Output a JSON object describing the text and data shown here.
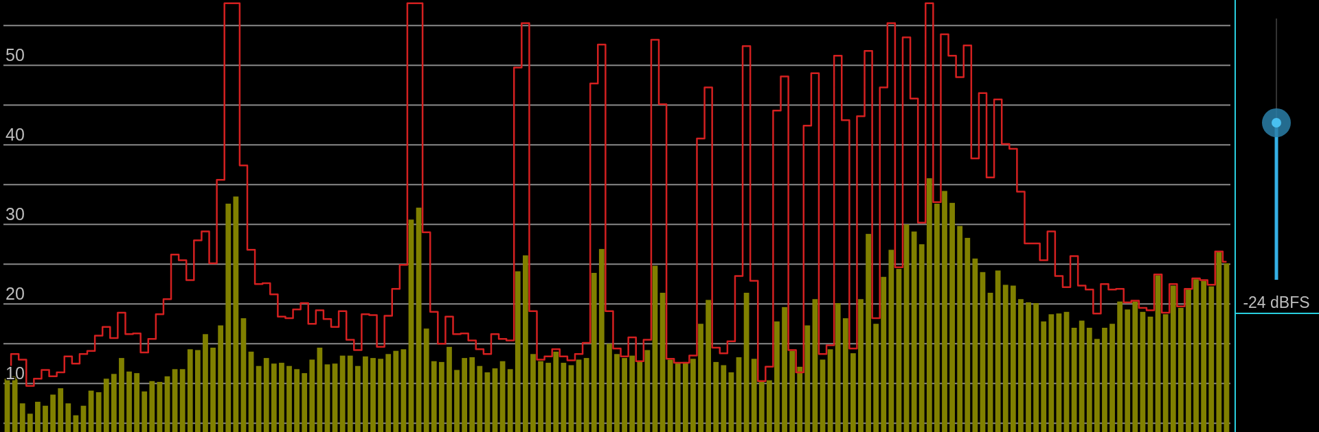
{
  "chart_data": {
    "type": "bar",
    "categories": [
      null,
      null,
      null,
      null,
      null,
      null,
      null,
      null,
      null,
      null,
      null,
      null,
      null,
      null,
      null,
      null,
      null,
      null,
      null,
      null,
      null,
      null,
      null,
      null,
      null,
      null,
      null,
      null,
      null,
      null,
      null,
      null,
      null,
      null,
      null,
      null,
      null,
      null,
      null,
      null,
      null,
      null,
      null,
      null,
      null,
      null,
      null,
      null,
      null,
      null,
      null,
      null,
      null,
      null,
      null,
      null,
      null,
      null,
      null,
      null,
      null,
      null,
      null,
      null,
      null,
      null,
      null,
      null,
      null,
      null,
      null,
      null,
      null,
      null,
      null,
      null,
      null,
      null,
      null,
      null,
      null,
      null,
      null,
      null,
      null,
      null,
      null,
      null,
      null,
      null,
      null,
      null,
      null,
      null,
      null,
      null,
      null,
      null,
      null,
      null,
      null,
      null,
      null,
      null,
      null,
      null,
      null,
      null,
      null,
      null,
      null,
      null,
      null,
      null,
      null,
      null,
      null,
      null,
      null,
      null,
      null,
      null,
      null,
      null,
      null,
      null,
      null,
      null,
      null,
      null,
      null,
      null,
      null,
      null,
      null,
      null,
      null,
      null,
      null,
      null,
      null,
      null,
      null,
      null,
      null,
      null,
      null,
      null,
      null,
      null,
      null,
      null,
      null,
      null,
      null,
      null,
      null,
      null,
      null,
      null,
      null
    ],
    "series": [
      {
        "color": "#808000",
        "values": [
          10.6,
          10.9,
          7.5,
          6.2,
          7.7,
          7.2,
          8.6,
          9.4,
          7.5,
          6.0,
          7.2,
          9.1,
          8.9,
          10.6,
          11.2,
          13.2,
          11.5,
          11.3,
          9.0,
          10.3,
          10.2,
          10.9,
          11.8,
          11.8,
          14.3,
          14.2,
          16.2,
          14.5,
          17.3,
          32.6,
          33.5,
          18.2,
          14.0,
          12.2,
          13.2,
          12.5,
          12.6,
          12.2,
          11.8,
          11.3,
          13.0,
          14.5,
          12.4,
          12.5,
          13.5,
          13.5,
          12.2,
          13.4,
          13.2,
          13.1,
          13.7,
          14.1,
          14.3,
          30.6,
          32.1,
          16.9,
          12.8,
          12.7,
          14.6,
          11.7,
          13.2,
          13.3,
          12.2,
          11.4,
          11.9,
          12.8,
          11.8,
          24.1,
          26.1,
          13.7,
          12.8,
          12.6,
          14.0,
          12.6,
          12.3,
          13.0,
          13.2,
          23.9,
          26.9,
          15.0,
          13.7,
          13.2,
          13.5,
          12.8,
          14.2,
          24.8,
          21.4,
          13.0,
          12.6,
          12.7,
          13.1,
          17.5,
          20.5,
          12.7,
          12.3,
          11.4,
          13.3,
          21.4,
          13.1,
          10.2,
          10.4,
          17.8,
          19.6,
          14.1,
          12.1,
          17.3,
          20.6,
          13.0,
          14.3,
          20.1,
          18.2,
          13.8,
          20.6,
          28.8,
          17.5,
          23.4,
          26.8,
          24.4,
          30.0,
          29.1,
          27.5,
          35.8,
          32.6,
          34.2,
          32.7,
          29.8,
          28.3,
          25.7,
          24.0,
          21.4,
          24.2,
          22.4,
          22.3,
          20.6,
          20.2,
          20.1,
          17.8,
          18.7,
          18.8,
          19.0,
          17.0,
          17.9,
          17.0,
          15.6,
          17.0,
          17.5,
          20.3,
          19.3,
          20.3,
          19.0,
          18.4,
          23.6,
          18.7,
          22.3,
          19.5,
          21.9,
          23.1,
          22.9,
          22.2,
          26.5,
          25.1
        ]
      },
      {
        "type": "step",
        "color": "#d42020",
        "values": [
          10.6,
          13.7,
          13.0,
          9.7,
          10.6,
          11.7,
          10.9,
          11.4,
          13.4,
          12.5,
          13.7,
          14.1,
          16.0,
          17.1,
          15.7,
          18.9,
          16.2,
          16.3,
          13.9,
          15.6,
          18.7,
          20.6,
          26.2,
          25.5,
          23.0,
          28.0,
          29.1,
          25.1,
          35.6,
          57.8,
          57.8,
          37.4,
          26.8,
          22.5,
          22.6,
          21.2,
          18.4,
          18.2,
          19.3,
          20.1,
          17.5,
          19.2,
          18.1,
          17.1,
          19.1,
          15.5,
          14.2,
          18.7,
          18.6,
          14.6,
          18.5,
          21.9,
          24.9,
          57.8,
          57.8,
          29.0,
          19.0,
          15.0,
          18.4,
          16.2,
          16.3,
          15.4,
          14.3,
          13.7,
          16.2,
          15.6,
          15.4,
          49.7,
          55.3,
          19.1,
          13.0,
          13.4,
          14.3,
          13.4,
          12.9,
          13.7,
          15.1,
          47.7,
          52.6,
          19.1,
          14.4,
          13.4,
          15.8,
          12.8,
          15.5,
          53.2,
          45.1,
          13.1,
          12.6,
          12.6,
          13.5,
          40.8,
          47.2,
          14.5,
          13.8,
          15.3,
          23.5,
          52.4,
          22.9,
          10.3,
          12.1,
          44.3,
          48.6,
          14.2,
          11.4,
          42.4,
          49.0,
          13.7,
          14.8,
          51.2,
          43.1,
          14.4,
          43.6,
          51.8,
          18.2,
          47.2,
          55.3,
          24.6,
          53.5,
          45.8,
          30.2,
          57.8,
          32.8,
          53.9,
          51.2,
          48.5,
          52.5,
          38.3,
          46.5,
          35.9,
          45.7,
          40.1,
          39.5,
          34.1,
          27.6,
          27.6,
          25.5,
          29.1,
          23.5,
          22.1,
          26.0,
          22.3,
          21.8,
          18.8,
          22.5,
          21.8,
          21.9,
          20.2,
          20.4,
          19.5,
          19.2,
          23.7,
          18.9,
          22.5,
          19.7,
          21.9,
          23.2,
          23.0,
          22.4,
          26.6,
          25.3
        ]
      }
    ],
    "ylim": [
      3.9,
      58.2
    ],
    "yticks": [
      {
        "value": 5,
        "label": null
      },
      10,
      {
        "value": 15,
        "label": null
      },
      20,
      {
        "value": 25,
        "label": null
      },
      30,
      {
        "value": 35,
        "label": null
      },
      40,
      {
        "value": 45,
        "label": null
      },
      50,
      {
        "value": 55,
        "label": null
      }
    ],
    "grid": "y",
    "annotations": [
      "-24 dBFS"
    ]
  }
}
